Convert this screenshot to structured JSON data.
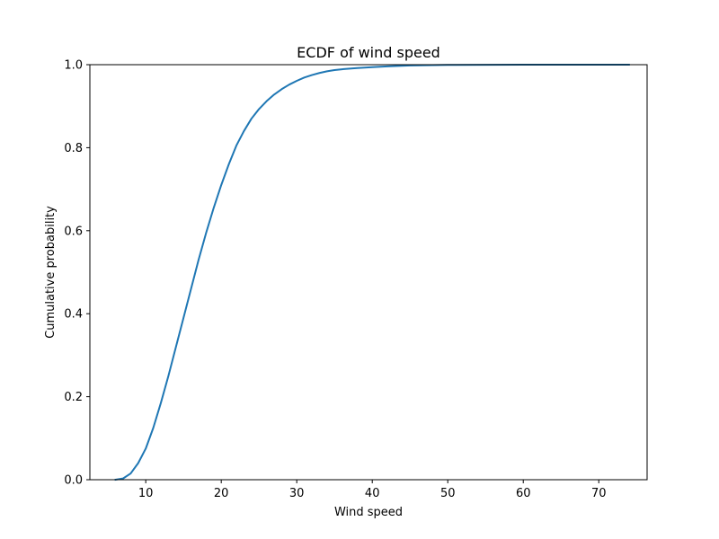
{
  "chart_data": {
    "type": "line",
    "title": "ECDF of wind speed",
    "xlabel": "Wind speed",
    "ylabel": "Cumulative probability",
    "xlim": [
      2.6,
      76.4
    ],
    "ylim": [
      0.0,
      1.0
    ],
    "xticks": [
      10,
      20,
      30,
      40,
      50,
      60,
      70
    ],
    "yticks": [
      0.0,
      0.2,
      0.4,
      0.6,
      0.8,
      1.0
    ],
    "xtick_labels": [
      "10",
      "20",
      "30",
      "40",
      "50",
      "60",
      "70"
    ],
    "ytick_labels": [
      "0.0",
      "0.2",
      "0.4",
      "0.6",
      "0.8",
      "1.0"
    ],
    "grid": false,
    "series": [
      {
        "color": "#1f77b4",
        "x": [
          6,
          7,
          8,
          9,
          10,
          11,
          12,
          13,
          14,
          15,
          16,
          17,
          18,
          19,
          20,
          21,
          22,
          23,
          24,
          25,
          26,
          27,
          28,
          29,
          30,
          31,
          32,
          33,
          34,
          35,
          36,
          38,
          40,
          42,
          45,
          50,
          60,
          74
        ],
        "y": [
          0.0,
          0.003,
          0.015,
          0.04,
          0.075,
          0.125,
          0.185,
          0.25,
          0.32,
          0.39,
          0.46,
          0.53,
          0.595,
          0.655,
          0.71,
          0.76,
          0.805,
          0.84,
          0.87,
          0.893,
          0.912,
          0.928,
          0.941,
          0.952,
          0.961,
          0.969,
          0.975,
          0.98,
          0.984,
          0.987,
          0.989,
          0.992,
          0.994,
          0.996,
          0.998,
          0.9995,
          0.9999,
          1.0
        ]
      }
    ]
  }
}
